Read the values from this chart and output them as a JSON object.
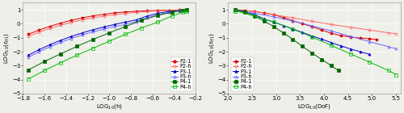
{
  "left": {
    "xlabel": "LOG$_{10}$(h)",
    "ylabel": "LOG$_{10}$($\\epsilon_{H1}$)",
    "xlim": [
      -1.8,
      -0.2
    ],
    "ylim": [
      -5.0,
      1.5
    ],
    "xticks": [
      -1.8,
      -1.6,
      -1.4,
      -1.2,
      -1.0,
      -0.8,
      -0.6,
      -0.4,
      -0.2
    ],
    "yticks": [
      -5,
      -4,
      -3,
      -2,
      -1,
      0,
      1
    ],
    "series": {
      "P2-1": {
        "color": "#dd0000",
        "marker": "o",
        "filled": true,
        "x": [
          -1.75,
          -1.65,
          -1.55,
          -1.45,
          -1.35,
          -1.25,
          -1.15,
          -1.05,
          -0.95,
          -0.85,
          -0.75,
          -0.65,
          -0.55,
          -0.45,
          -0.35,
          -0.28
        ],
        "y": [
          -0.75,
          -0.45,
          -0.18,
          0.05,
          0.25,
          0.42,
          0.57,
          0.68,
          0.78,
          0.85,
          0.9,
          0.93,
          0.95,
          0.97,
          0.98,
          1.0
        ]
      },
      "P2-h": {
        "color": "#ff6666",
        "marker": "o",
        "filled": false,
        "x": [
          -1.75,
          -1.65,
          -1.55,
          -1.45,
          -1.35,
          -1.25,
          -1.15,
          -1.05,
          -0.95,
          -0.85,
          -0.75,
          -0.65,
          -0.55,
          -0.45,
          -0.35,
          -0.28
        ],
        "y": [
          -0.9,
          -0.6,
          -0.33,
          -0.1,
          0.1,
          0.28,
          0.42,
          0.55,
          0.65,
          0.74,
          0.82,
          0.88,
          0.92,
          0.95,
          0.97,
          0.98
        ]
      },
      "P3-1": {
        "color": "#0000cc",
        "marker": "^",
        "filled": true,
        "x": [
          -1.75,
          -1.65,
          -1.55,
          -1.45,
          -1.35,
          -1.25,
          -1.15,
          -1.05,
          -0.95,
          -0.85,
          -0.75,
          -0.65,
          -0.55,
          -0.45,
          -0.35,
          -0.28
        ],
        "y": [
          -2.25,
          -1.85,
          -1.5,
          -1.18,
          -0.9,
          -0.65,
          -0.43,
          -0.23,
          -0.05,
          0.12,
          0.28,
          0.55,
          0.75,
          0.88,
          0.95,
          0.98
        ]
      },
      "P3-h": {
        "color": "#6666ff",
        "marker": "^",
        "filled": false,
        "x": [
          -1.75,
          -1.65,
          -1.55,
          -1.45,
          -1.35,
          -1.25,
          -1.15,
          -1.05,
          -0.95,
          -0.85,
          -0.75,
          -0.65,
          -0.55,
          -0.45,
          -0.35,
          -0.28
        ],
        "y": [
          -2.4,
          -2.0,
          -1.65,
          -1.33,
          -1.05,
          -0.8,
          -0.58,
          -0.38,
          -0.2,
          -0.05,
          0.15,
          0.42,
          0.65,
          0.82,
          0.93,
          0.97
        ]
      },
      "P4-1": {
        "color": "#006600",
        "marker": "s",
        "filled": true,
        "x": [
          -1.75,
          -1.6,
          -1.45,
          -1.3,
          -1.15,
          -1.0,
          -0.85,
          -0.7,
          -0.55,
          -0.42,
          -0.32,
          -0.28
        ],
        "y": [
          -3.3,
          -2.7,
          -2.15,
          -1.62,
          -1.12,
          -0.65,
          -0.2,
          0.25,
          0.6,
          0.82,
          0.95,
          0.98
        ]
      },
      "P4-h": {
        "color": "#00bb00",
        "marker": "s",
        "filled": false,
        "x": [
          -1.75,
          -1.6,
          -1.45,
          -1.3,
          -1.15,
          -1.0,
          -0.85,
          -0.7,
          -0.55,
          -0.42,
          -0.32,
          -0.28
        ],
        "y": [
          -3.95,
          -3.35,
          -2.78,
          -2.25,
          -1.75,
          -1.25,
          -0.75,
          -0.3,
          0.12,
          0.55,
          0.82,
          0.92
        ]
      }
    }
  },
  "right": {
    "xlabel": "LOG$_{10}$(DoF)",
    "ylabel": "LOG$_{10}$($\\epsilon_{H1}$)",
    "xlim": [
      2.0,
      5.6
    ],
    "ylim": [
      -5.0,
      1.5
    ],
    "xticks": [
      2.0,
      2.5,
      3.0,
      3.5,
      4.0,
      4.5,
      5.0,
      5.5
    ],
    "yticks": [
      -5,
      -4,
      -3,
      -2,
      -1,
      0,
      1
    ],
    "series": {
      "P2-1": {
        "color": "#dd0000",
        "marker": "o",
        "filled": true,
        "x": [
          2.15,
          2.35,
          2.55,
          2.75,
          2.95,
          3.15,
          3.35,
          3.55,
          3.75,
          3.95,
          4.15,
          4.35,
          4.55,
          4.75,
          4.95,
          5.1
        ],
        "y": [
          1.0,
          0.95,
          0.88,
          0.78,
          0.65,
          0.45,
          0.22,
          0.0,
          -0.2,
          -0.45,
          -0.68,
          -0.85,
          -0.95,
          -1.02,
          -1.08,
          -1.12
        ]
      },
      "P2-h": {
        "color": "#ff6666",
        "marker": "o",
        "filled": false,
        "x": [
          2.15,
          2.55,
          2.95,
          3.35,
          3.75,
          4.15,
          4.55,
          4.95,
          5.35,
          5.5
        ],
        "y": [
          0.98,
          0.88,
          0.65,
          0.42,
          0.18,
          -0.05,
          -0.25,
          -0.45,
          -0.65,
          -0.72
        ]
      },
      "P3-1": {
        "color": "#0000cc",
        "marker": "^",
        "filled": true,
        "x": [
          2.15,
          2.35,
          2.55,
          2.75,
          2.95,
          3.15,
          3.35,
          3.55,
          3.75,
          3.95,
          4.15,
          4.35,
          4.55,
          4.75,
          4.95
        ],
        "y": [
          1.0,
          0.88,
          0.65,
          0.35,
          0.12,
          -0.12,
          -0.38,
          -0.62,
          -0.88,
          -1.1,
          -1.35,
          -1.58,
          -1.8,
          -2.0,
          -2.18
        ]
      },
      "P3-h": {
        "color": "#6666ff",
        "marker": "^",
        "filled": false,
        "x": [
          2.15,
          2.55,
          2.95,
          3.35,
          3.75,
          4.15,
          4.55,
          4.95,
          5.35,
          5.5
        ],
        "y": [
          0.95,
          0.75,
          0.5,
          0.2,
          -0.15,
          -0.52,
          -0.9,
          -1.28,
          -1.65,
          -1.78
        ]
      },
      "P4-1": {
        "color": "#006600",
        "marker": "s",
        "filled": true,
        "x": [
          2.15,
          2.35,
          2.55,
          2.75,
          2.95,
          3.15,
          3.35,
          3.55,
          3.75,
          3.95,
          4.15,
          4.3
        ],
        "y": [
          1.0,
          0.82,
          0.55,
          0.2,
          -0.2,
          -0.65,
          -1.12,
          -1.62,
          -2.1,
          -2.55,
          -3.0,
          -3.35
        ]
      },
      "P4-h": {
        "color": "#00bb00",
        "marker": "s",
        "filled": false,
        "x": [
          2.15,
          2.55,
          2.95,
          3.35,
          3.75,
          4.15,
          4.55,
          4.95,
          5.35,
          5.5
        ],
        "y": [
          0.92,
          0.55,
          0.12,
          -0.38,
          -0.95,
          -1.55,
          -2.15,
          -2.75,
          -3.35,
          -3.65
        ]
      }
    }
  },
  "legend_order": [
    "P2-1",
    "P2-h",
    "P3-1",
    "P3-h",
    "P4-1",
    "P4-h"
  ],
  "legend_colors": [
    "#dd0000",
    "#ff6666",
    "#0000cc",
    "#6666ff",
    "#006600",
    "#00bb00"
  ],
  "legend_markers": [
    "o",
    "o",
    "^",
    "^",
    "s",
    "s"
  ],
  "legend_filled": [
    true,
    false,
    true,
    false,
    true,
    false
  ],
  "bg_color": "#efefea",
  "font_size": 5.0
}
